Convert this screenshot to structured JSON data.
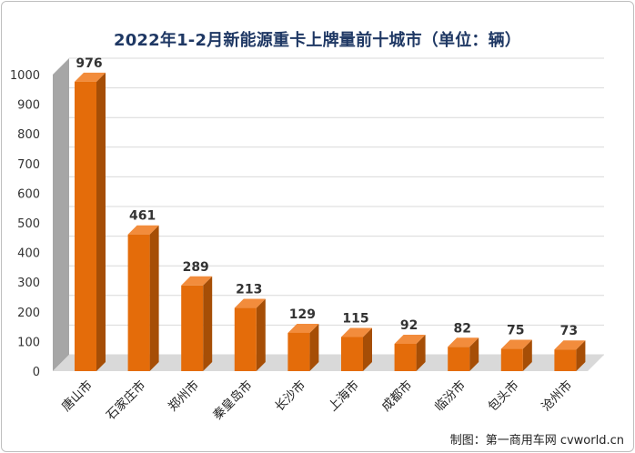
{
  "chart_data": {
    "type": "bar",
    "title": "2022年1-2月新能源重卡上牌量前十城市（单位：辆）",
    "categories": [
      "唐山市",
      "石家庄市",
      "郑州市",
      "秦皇岛市",
      "长沙市",
      "上海市",
      "成都市",
      "临汾市",
      "包头市",
      "沧州市"
    ],
    "values": [
      976,
      461,
      289,
      213,
      129,
      115,
      92,
      82,
      75,
      73
    ],
    "ylim": [
      0,
      1000
    ],
    "yticks": [
      0,
      100,
      200,
      300,
      400,
      500,
      600,
      700,
      800,
      900,
      1000
    ],
    "grid": true,
    "legend": "none",
    "xlabel": "",
    "ylabel": "",
    "colors": {
      "bar_front": "#e46c0a",
      "bar_side": "#a64e06",
      "bar_top": "#f28c3c",
      "title": "#1f3864",
      "wall": "#a6a6a6",
      "grid": "#d9d9d9"
    }
  },
  "credit": "制图：第一商用车网 cvworld.cn"
}
